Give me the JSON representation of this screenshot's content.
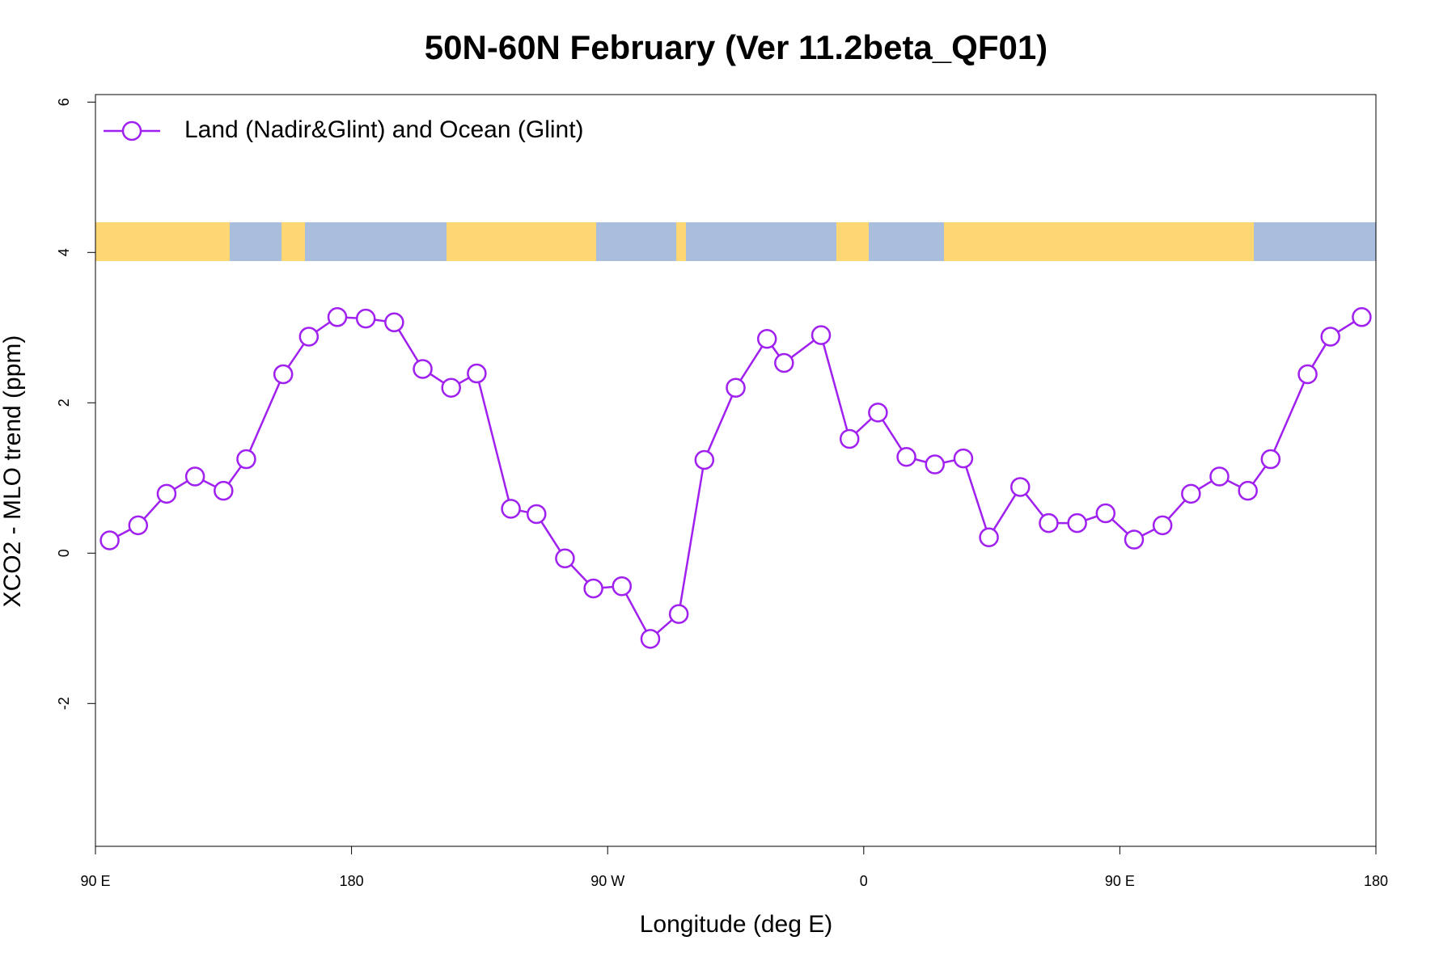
{
  "chart_data": {
    "type": "line",
    "title": "50N-60N February (Ver 11.2beta_QF01)",
    "xlabel": "Longitude (deg E)",
    "ylabel": "XCO2 - MLO trend (ppm)",
    "x": [
      95,
      105,
      115,
      125,
      135,
      143,
      156,
      165,
      175,
      185,
      195,
      205,
      215,
      224,
      236,
      245,
      255,
      265,
      275,
      285,
      295,
      304,
      315,
      326,
      332,
      345,
      355,
      365,
      375,
      385,
      395,
      404,
      415,
      425,
      435,
      445,
      455,
      465,
      475,
      485,
      495,
      503,
      516,
      524,
      535
    ],
    "series": [
      {
        "name": "Land (Nadir&Glint) and Ocean (Glint)",
        "color": "#a020f0",
        "values": [
          0.17,
          0.37,
          0.79,
          1.02,
          0.83,
          1.25,
          2.38,
          2.88,
          3.14,
          3.12,
          3.07,
          2.45,
          2.2,
          2.39,
          0.59,
          0.52,
          -0.07,
          -0.47,
          -0.44,
          -1.14,
          -0.81,
          1.24,
          2.2,
          2.85,
          2.53,
          2.9,
          1.52,
          1.87,
          1.28,
          1.18,
          1.26,
          0.21,
          0.88,
          0.4,
          0.4,
          0.53,
          0.18,
          0.37,
          0.79,
          1.02,
          0.83,
          1.25,
          2.38,
          2.88,
          3.14
        ]
      }
    ],
    "xlim": [
      90,
      540
    ],
    "xticks": [
      {
        "value": 90,
        "label": "90 E"
      },
      180,
      {
        "value": 270,
        "label": "90 W"
      },
      {
        "value": 360,
        "label": "0"
      },
      {
        "value": 450,
        "label": "90 E"
      },
      {
        "value": 540,
        "label": "180"
      }
    ],
    "ylim": [
      -3.9,
      6.1
    ],
    "yticks": [
      -2,
      0,
      2,
      4,
      6
    ],
    "legend": "topleft"
  }
}
